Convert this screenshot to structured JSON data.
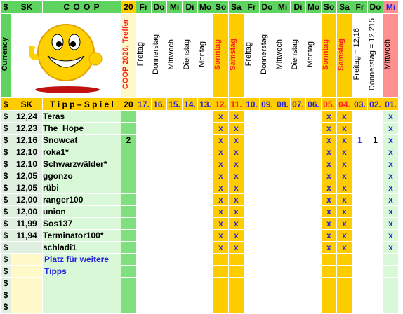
{
  "header": {
    "dollar": "$",
    "sk": "SK",
    "coop": "C O O P",
    "num": "20",
    "days": [
      "Fr",
      "Do",
      "Mi",
      "Di",
      "Mo",
      "So",
      "Sa",
      "Fr",
      "Do",
      "Mi",
      "Di",
      "Mo",
      "So",
      "Sa",
      "Fr",
      "Do",
      "Mi"
    ]
  },
  "second": {
    "currency": "Currency",
    "coop_label": "COOP 2020, Treffer",
    "day_names": [
      "Freitag",
      "Donnerstag",
      "Mittwoch",
      "Dienstag",
      "Montag",
      "Sonntag",
      "Samstag",
      "Freitag",
      "Donnerstag",
      "Mittwoch",
      "Dienstag",
      "Montag",
      "Sonntag",
      "Samstag",
      "Freitag = 12,16",
      "Donnerstag = 12,215",
      "Mittwoch"
    ]
  },
  "tipp": {
    "dollar": "$",
    "sk": "SK",
    "title": "T i p p – S p i e l",
    "num": "20",
    "dates": [
      "17.",
      "16.",
      "15.",
      "14.",
      "13.",
      "12.",
      "11.",
      "10.",
      "09.",
      "08.",
      "07.",
      "06.",
      "05.",
      "04.",
      "03.",
      "02.",
      "01."
    ]
  },
  "rows": [
    {
      "d": "$",
      "sk": "12,24",
      "name": "Teras",
      "hit": "",
      "t03": "",
      "t02": ""
    },
    {
      "d": "$",
      "sk": "12,23",
      "name": "The_Hope",
      "hit": "",
      "t03": "",
      "t02": ""
    },
    {
      "d": "$",
      "sk": "12,16",
      "name": "Snowcat",
      "hit": "2",
      "t03": "1",
      "t02": "1"
    },
    {
      "d": "$",
      "sk": "12,10",
      "name": "roka1*",
      "hit": "",
      "t03": "",
      "t02": ""
    },
    {
      "d": "$",
      "sk": "12,10",
      "name": "Schwarzwälder*",
      "hit": "",
      "t03": "",
      "t02": ""
    },
    {
      "d": "$",
      "sk": "12,05",
      "name": "ggonzo",
      "hit": "",
      "t03": "",
      "t02": ""
    },
    {
      "d": "$",
      "sk": "12,05",
      "name": "rübi",
      "hit": "",
      "t03": "",
      "t02": ""
    },
    {
      "d": "$",
      "sk": "12,00",
      "name": "ranger100",
      "hit": "",
      "t03": "",
      "t02": ""
    },
    {
      "d": "$",
      "sk": "12,00",
      "name": "union",
      "hit": "",
      "t03": "",
      "t02": ""
    },
    {
      "d": "$",
      "sk": "11,99",
      "name": "Sos137",
      "hit": "",
      "t03": "",
      "t02": ""
    },
    {
      "d": "$",
      "sk": "11,94",
      "name": "Terminator100*",
      "hit": "",
      "t03": "",
      "t02": ""
    },
    {
      "d": "$",
      "sk": "",
      "name": "schladi1",
      "hit": "",
      "t03": "",
      "t02": ""
    }
  ],
  "x_mark": "x",
  "empty_rows": [
    "$",
    "$",
    "$",
    "$",
    "$"
  ],
  "note": "Platz für weitere Tipps",
  "colors": {
    "green": "#5fd35f",
    "gold": "#ffcc00",
    "blue": "#2424d8",
    "red": "#ff2020"
  }
}
